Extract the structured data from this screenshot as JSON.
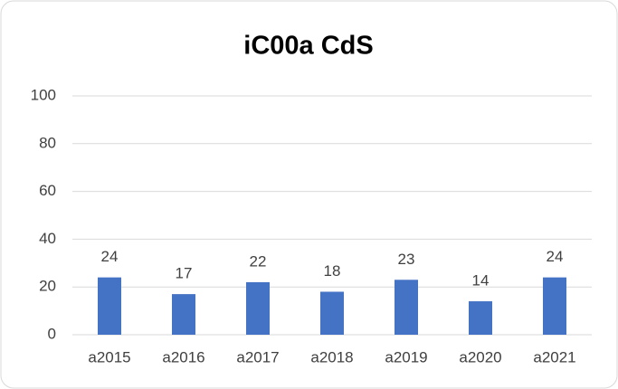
{
  "chart_data": {
    "type": "bar",
    "title": "iC00a CdS",
    "categories": [
      "a2015",
      "a2016",
      "a2017",
      "a2018",
      "a2019",
      "a2020",
      "a2021"
    ],
    "values": [
      24,
      17,
      22,
      18,
      23,
      14,
      24
    ],
    "color": "#4472c4",
    "ylim": [
      0,
      100
    ],
    "yticks": [
      0,
      20,
      40,
      60,
      80,
      100
    ],
    "grid": true
  }
}
